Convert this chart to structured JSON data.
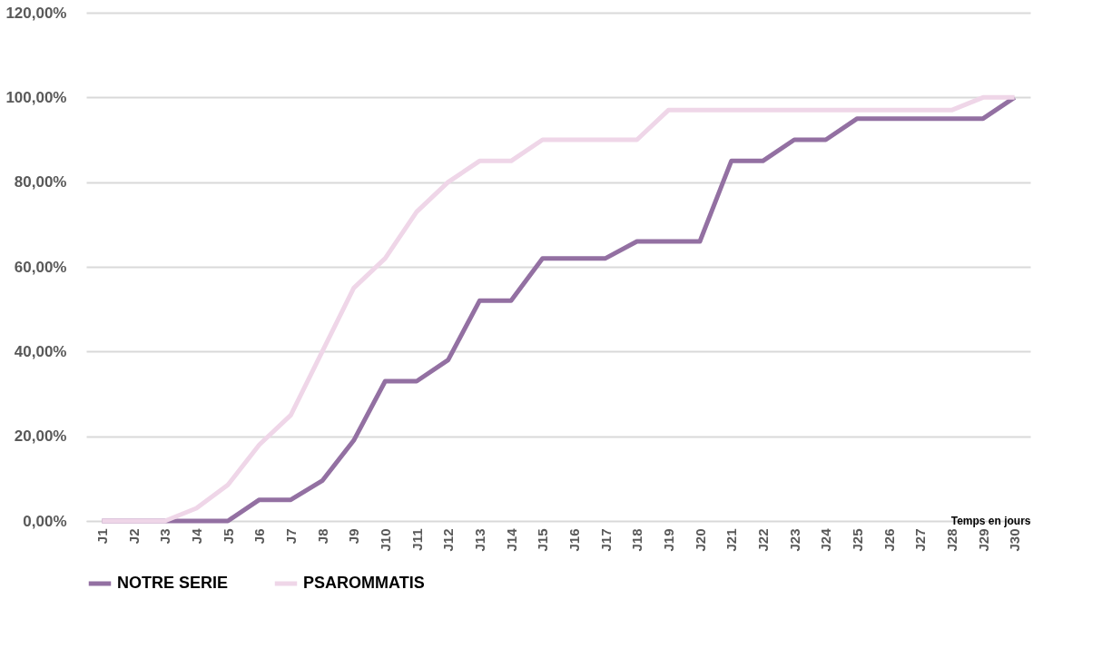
{
  "chart_data": {
    "type": "line",
    "xlabel": "Temps en jours",
    "categories": [
      "J1",
      "J2",
      "J3",
      "J4",
      "J5",
      "J6",
      "J7",
      "J8",
      "J9",
      "J10",
      "J11",
      "J12",
      "J13",
      "J14",
      "J15",
      "J16",
      "J17",
      "J18",
      "J19",
      "J20",
      "J21",
      "J22",
      "J23",
      "J24",
      "J25",
      "J26",
      "J27",
      "J28",
      "J29",
      "J30"
    ],
    "series": [
      {
        "name": "NOTRE SERIE",
        "color": "#9370a2",
        "values": [
          0,
          0,
          0,
          0,
          0,
          5,
          5,
          9.5,
          19,
          33,
          33,
          38,
          52,
          52,
          62,
          62,
          62,
          66,
          66,
          66,
          85,
          85,
          90,
          90,
          95,
          95,
          95,
          95,
          95,
          100
        ]
      },
      {
        "name": "PSAROMMATIS",
        "color": "#efd6e8",
        "values": [
          0,
          0,
          0,
          3,
          8.5,
          18,
          25,
          40,
          55,
          62,
          73,
          80,
          85,
          85,
          90,
          90,
          90,
          90,
          97,
          97,
          97,
          97,
          97,
          97,
          97,
          97,
          97,
          97,
          100,
          100
        ]
      }
    ],
    "ylim": [
      0,
      120
    ],
    "yticks": [
      {
        "value": 0,
        "label": "0,00%"
      },
      {
        "value": 20,
        "label": "20,00%"
      },
      {
        "value": 40,
        "label": "40,00%"
      },
      {
        "value": 60,
        "label": "60,00%"
      },
      {
        "value": 80,
        "label": "80,00%"
      },
      {
        "value": 100,
        "label": "100,00%"
      },
      {
        "value": 120,
        "label": "120,00%"
      }
    ],
    "grid": "y",
    "legend": "bottom",
    "marker": "none",
    "line_style": "solid"
  }
}
